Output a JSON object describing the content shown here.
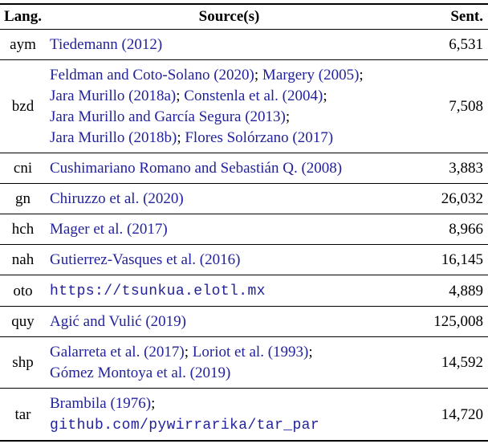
{
  "colors": {
    "link_blue": "#22229c",
    "text": "#000000",
    "rule": "#000000"
  },
  "table": {
    "header": {
      "lang": "Lang.",
      "source": "Source(s)",
      "sent": "Sent."
    },
    "rows": [
      {
        "lang": "aym",
        "sent": "6,531",
        "lines": [
          [
            {
              "t": "Tiedemann (2012)",
              "k": "cite"
            }
          ]
        ]
      },
      {
        "lang": "bzd",
        "sent": "7,508",
        "lines": [
          [
            {
              "t": "Feldman and Coto-Solano (2020)",
              "k": "cite"
            },
            {
              "t": "; ",
              "k": "plain"
            },
            {
              "t": "Margery (2005)",
              "k": "cite"
            },
            {
              "t": ";",
              "k": "plain"
            }
          ],
          [
            {
              "t": "Jara Murillo (2018a)",
              "k": "cite"
            },
            {
              "t": "; ",
              "k": "plain"
            },
            {
              "t": "Constenla et al. (2004)",
              "k": "cite"
            },
            {
              "t": ";",
              "k": "plain"
            }
          ],
          [
            {
              "t": "Jara Murillo and García Segura (2013)",
              "k": "cite"
            },
            {
              "t": ";",
              "k": "plain"
            }
          ],
          [
            {
              "t": "Jara Murillo (2018b)",
              "k": "cite"
            },
            {
              "t": "; ",
              "k": "plain"
            },
            {
              "t": "Flores Solórzano (2017)",
              "k": "cite"
            }
          ]
        ]
      },
      {
        "lang": "cni",
        "sent": "3,883",
        "lines": [
          [
            {
              "t": "Cushimariano Romano and Sebastián Q. (2008)",
              "k": "cite"
            }
          ]
        ]
      },
      {
        "lang": "gn",
        "sent": "26,032",
        "lines": [
          [
            {
              "t": "Chiruzzo et al. (2020)",
              "k": "cite"
            }
          ]
        ]
      },
      {
        "lang": "hch",
        "sent": "8,966",
        "lines": [
          [
            {
              "t": "Mager et al. (2017)",
              "k": "cite"
            }
          ]
        ]
      },
      {
        "lang": "nah",
        "sent": "16,145",
        "lines": [
          [
            {
              "t": "Gutierrez-Vasques et al. (2016)",
              "k": "cite"
            }
          ]
        ]
      },
      {
        "lang": "oto",
        "sent": "4,889",
        "lines": [
          [
            {
              "t": "https://tsunkua.elotl.mx",
              "k": "mono"
            }
          ]
        ]
      },
      {
        "lang": "quy",
        "sent": "125,008",
        "lines": [
          [
            {
              "t": "Agić and Vulić (2019)",
              "k": "cite"
            }
          ]
        ]
      },
      {
        "lang": "shp",
        "sent": "14,592",
        "lines": [
          [
            {
              "t": "Galarreta et al. (2017)",
              "k": "cite"
            },
            {
              "t": "; ",
              "k": "plain"
            },
            {
              "t": "Loriot et al. (1993)",
              "k": "cite"
            },
            {
              "t": ";",
              "k": "plain"
            }
          ],
          [
            {
              "t": "Gómez Montoya et al. (2019)",
              "k": "cite"
            }
          ]
        ]
      },
      {
        "lang": "tar",
        "sent": "14,720",
        "lines": [
          [
            {
              "t": "Brambila (1976)",
              "k": "cite"
            },
            {
              "t": ";",
              "k": "plain"
            }
          ],
          [
            {
              "t": "github.com/pywirrarika/tar_par",
              "k": "mono"
            }
          ]
        ]
      }
    ]
  }
}
